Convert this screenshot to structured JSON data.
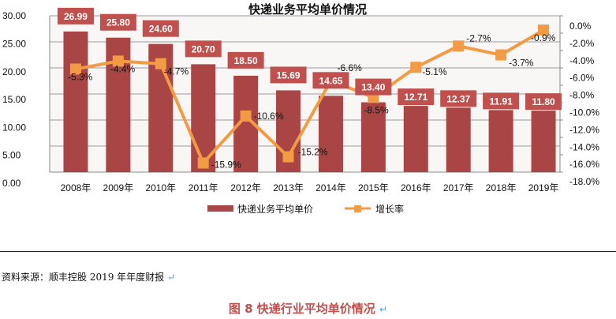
{
  "chart_data": {
    "type": "bar",
    "title": "快递业务平均单价情况",
    "categories": [
      "2008年",
      "2009年",
      "2010年",
      "2011年",
      "2012年",
      "2013年",
      "2014年",
      "2015年",
      "2016年",
      "2017年",
      "2018年",
      "2019年"
    ],
    "series": [
      {
        "name": "快递业务平均单价",
        "type": "bar",
        "axis": "left",
        "color": "#a94645",
        "values": [
          26.99,
          25.8,
          24.6,
          20.7,
          18.5,
          15.69,
          14.65,
          13.4,
          12.71,
          12.37,
          11.91,
          11.8
        ],
        "labels": [
          "26.99",
          "25.80",
          "24.60",
          "20.70",
          "18.50",
          "15.69",
          "14.65",
          "13.40",
          "12.71",
          "12.37",
          "11.91",
          "11.80"
        ]
      },
      {
        "name": "增长率",
        "type": "line",
        "axis": "right",
        "color": "#f39a44",
        "values": [
          -5.3,
          -4.4,
          -4.7,
          -15.9,
          -10.6,
          -15.2,
          -6.6,
          -8.5,
          -5.1,
          -2.7,
          -3.7,
          -0.9
        ],
        "labels": [
          "-5.3%",
          "-4.4%",
          "-4.7%",
          "-15.9%",
          "-10.6%",
          "-15.2%",
          "-6.6%",
          "-8.5%",
          "-5.1%",
          "-2.7%",
          "-3.7%",
          "-0.9%"
        ]
      }
    ],
    "left_axis": {
      "ylim": [
        0,
        30
      ],
      "ticks": [
        "0.00",
        "5.00",
        "10.00",
        "15.00",
        "20.00",
        "25.00",
        "30.00"
      ]
    },
    "right_axis": {
      "ylim": [
        -18,
        0
      ],
      "ticks": [
        "0.0%",
        "-2.0%",
        "-4.0%",
        "-6.0%",
        "-8.0%",
        "-10.0%",
        "-12.0%",
        "-14.0%",
        "-16.0%",
        "-18.0%"
      ]
    },
    "grid": true,
    "legend": "bottom",
    "label_box_color": "#c0504d"
  },
  "source_text": "资料来源：顺丰控股 2019 年年度财报",
  "caption": "图 8 快递行业平均单价情况",
  "return_mark": "↵"
}
